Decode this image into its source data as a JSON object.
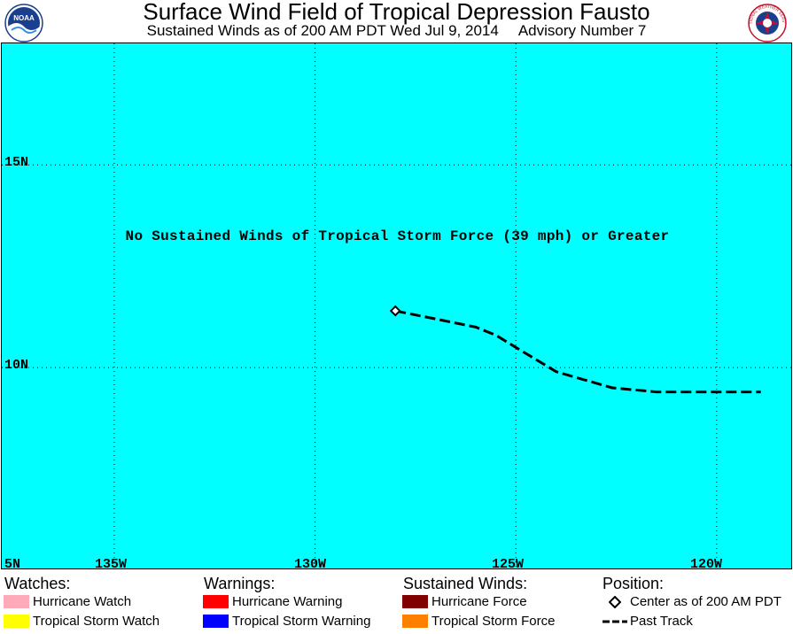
{
  "header": {
    "title": "Surface Wind Field of Tropical Depression Fausto",
    "subtitle": "Sustained Winds as of 200 AM PDT Wed Jul 9, 2014",
    "advisory": "Advisory Number 7",
    "left_logo_text": "NOAA",
    "right_logo_text": "NATIONAL WEATHER SERVICE"
  },
  "map": {
    "background_color": "#00ffff",
    "notice": "No Sustained Winds of Tropical Storm Force (39 mph) or Greater",
    "latitude_labels": [
      "15N",
      "10N",
      "5N"
    ],
    "longitude_labels": [
      "135W",
      "130W",
      "125W",
      "120W"
    ],
    "lat_range": [
      5,
      18
    ],
    "lon_range": [
      -137.8,
      -118.1
    ],
    "grid": "dotted",
    "center": {
      "lat": 11.4,
      "lon": -128.0
    },
    "past_track": [
      {
        "lat": 11.4,
        "lon": -128.0
      },
      {
        "lat": 11.2,
        "lon": -127.0
      },
      {
        "lat": 11.0,
        "lon": -126.0
      },
      {
        "lat": 10.8,
        "lon": -125.5
      },
      {
        "lat": 10.5,
        "lon": -125.0
      },
      {
        "lat": 10.2,
        "lon": -124.5
      },
      {
        "lat": 9.9,
        "lon": -124.0
      },
      {
        "lat": 9.7,
        "lon": -123.3
      },
      {
        "lat": 9.5,
        "lon": -122.6
      },
      {
        "lat": 9.4,
        "lon": -121.5
      },
      {
        "lat": 9.4,
        "lon": -120.5
      },
      {
        "lat": 9.4,
        "lon": -118.9
      }
    ]
  },
  "legend": {
    "watches": {
      "heading": "Watches:",
      "items": [
        {
          "label": "Hurricane Watch",
          "color": "#ffaabb"
        },
        {
          "label": "Tropical Storm Watch",
          "color": "#ffff00"
        }
      ]
    },
    "warnings": {
      "heading": "Warnings:",
      "items": [
        {
          "label": "Hurricane Warning",
          "color": "#ff0000"
        },
        {
          "label": "Tropical Storm Warning",
          "color": "#0000ff"
        }
      ]
    },
    "sustained_winds": {
      "heading": "Sustained Winds:",
      "items": [
        {
          "label": "Hurricane Force",
          "color": "#800000"
        },
        {
          "label": "Tropical Storm Force",
          "color": "#ff8000"
        }
      ]
    },
    "position": {
      "heading": "Position:",
      "items": [
        {
          "label": "Center as of 200 AM PDT",
          "icon": "diamond-icon"
        },
        {
          "label": "Past Track",
          "icon": "dashed-line-icon"
        }
      ]
    }
  }
}
